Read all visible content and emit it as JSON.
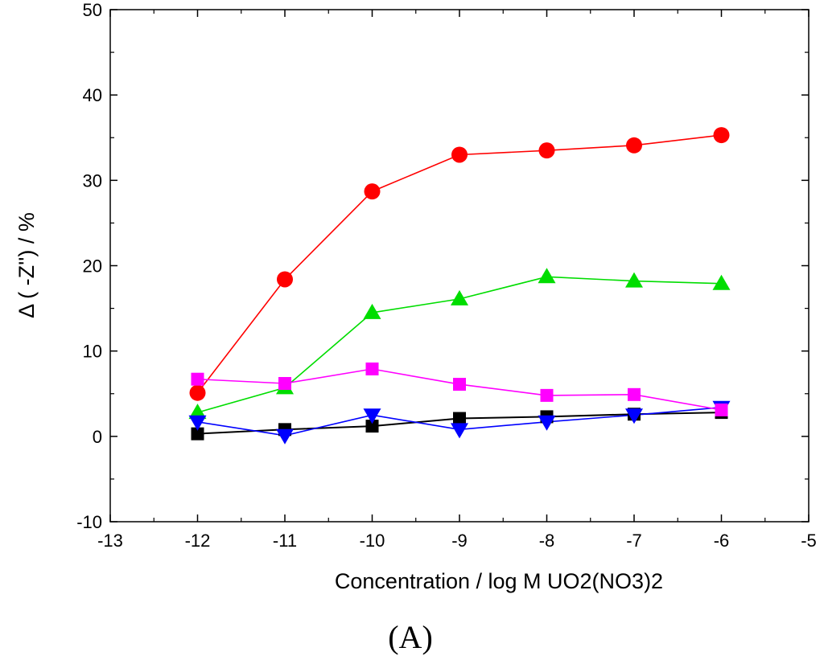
{
  "chart_data": {
    "type": "line",
    "title": "",
    "xlabel": "Concentration / log M UO2(NO3)2",
    "ylabel": "Δ ( -Z'') / %",
    "panel_label": "(A)",
    "xlim": [
      -13,
      -5
    ],
    "ylim": [
      -10,
      50
    ],
    "xticks": [
      -13,
      -12,
      -11,
      -10,
      -9,
      -8,
      -7,
      -6,
      -5
    ],
    "yticks": [
      -10,
      0,
      10,
      20,
      30,
      40,
      50
    ],
    "grid": false,
    "legend": "none",
    "x": [
      -12,
      -11,
      -10,
      -9,
      -8,
      -7,
      -6
    ],
    "series": [
      {
        "name": "black squares",
        "color": "#000000",
        "marker": "square",
        "values": [
          0.3,
          0.8,
          1.2,
          2.1,
          2.3,
          2.6,
          2.8
        ]
      },
      {
        "name": "red circles",
        "color": "#ff0000",
        "marker": "circle",
        "values": [
          5.1,
          18.4,
          28.7,
          33.0,
          33.5,
          34.1,
          35.3
        ]
      },
      {
        "name": "green triangles",
        "color": "#00dd00",
        "marker": "triangle-up",
        "values": [
          2.8,
          5.7,
          14.5,
          16.1,
          18.7,
          18.2,
          17.9
        ]
      },
      {
        "name": "blue triangles",
        "color": "#0000ff",
        "marker": "triangle-down",
        "values": [
          1.7,
          0.1,
          2.5,
          0.8,
          1.7,
          2.5,
          3.4
        ]
      },
      {
        "name": "magenta squares",
        "color": "#ff00ff",
        "marker": "square",
        "values": [
          6.7,
          6.2,
          7.9,
          6.1,
          4.8,
          4.9,
          3.1
        ]
      }
    ]
  }
}
